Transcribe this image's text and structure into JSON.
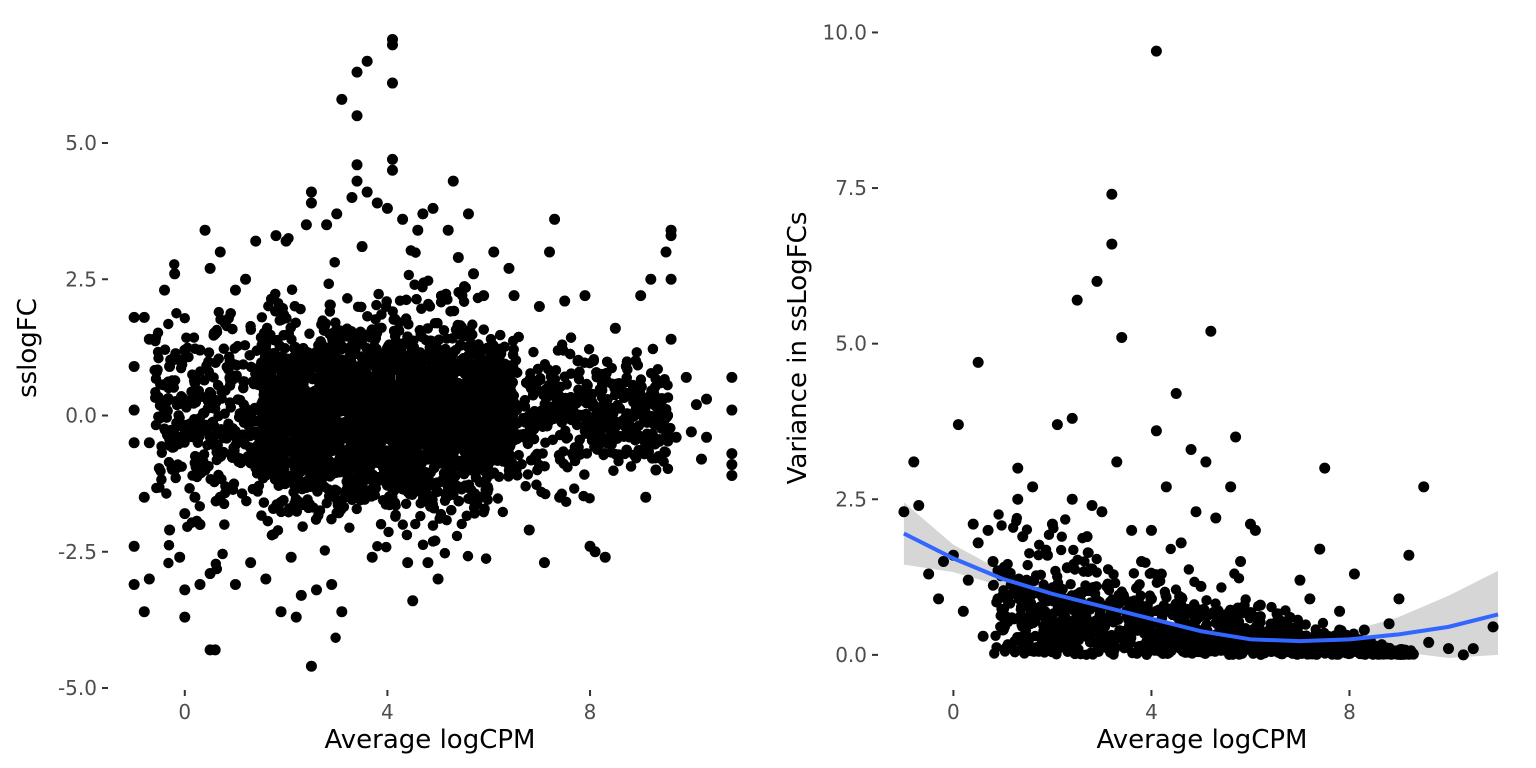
{
  "chart_data": [
    {
      "type": "scatter",
      "title": "",
      "xlabel": "Average logCPM",
      "ylabel": "sslogFC",
      "xlim": [
        -1.2,
        11.0
      ],
      "ylim": [
        -5.0,
        7.0
      ],
      "xticks": [
        0,
        4,
        8
      ],
      "xtick_labels": [
        "0",
        "4",
        "8"
      ],
      "yticks": [
        -5,
        -2.5,
        0,
        2.5,
        5
      ],
      "ytick_labels": [
        "-5.0",
        "-2.5",
        "0.0",
        "2.5",
        "5.0"
      ],
      "grid": false,
      "legend": "none",
      "point_color": "#000000",
      "points": [
        [
          -1.0,
          1.8
        ],
        [
          -1.0,
          0.9
        ],
        [
          -1.0,
          0.1
        ],
        [
          -1.0,
          -0.5
        ],
        [
          -1.0,
          -2.4
        ],
        [
          -1.0,
          -3.1
        ],
        [
          -0.8,
          1.8
        ],
        [
          -0.8,
          -1.5
        ],
        [
          -0.8,
          -3.6
        ],
        [
          -0.7,
          1.4
        ],
        [
          -0.7,
          -0.5
        ],
        [
          -0.7,
          -3.0
        ],
        [
          -0.4,
          2.3
        ],
        [
          -0.3,
          0.9
        ],
        [
          -0.3,
          -2.1
        ],
        [
          -0.2,
          2.6
        ],
        [
          -0.2,
          -1.0
        ],
        [
          -0.1,
          -2.6
        ],
        [
          0.0,
          1.2
        ],
        [
          0.0,
          -1.8
        ],
        [
          0.0,
          -3.2
        ],
        [
          0.0,
          -3.7
        ],
        [
          0.2,
          0.6
        ],
        [
          0.2,
          -1.5
        ],
        [
          0.3,
          1.2
        ],
        [
          0.3,
          -2.0
        ],
        [
          0.3,
          -3.1
        ],
        [
          0.4,
          3.4
        ],
        [
          0.4,
          -1.0
        ],
        [
          0.5,
          -4.3
        ],
        [
          0.5,
          2.7
        ],
        [
          0.5,
          -2.9
        ],
        [
          0.6,
          -4.3
        ],
        [
          0.6,
          1.5
        ],
        [
          0.7,
          3.0
        ],
        [
          0.7,
          -1.5
        ],
        [
          1.0,
          2.3
        ],
        [
          1.0,
          -3.1
        ],
        [
          1.2,
          2.5
        ],
        [
          1.3,
          -2.7
        ],
        [
          1.4,
          3.2
        ],
        [
          1.6,
          -3.0
        ],
        [
          1.8,
          3.3
        ],
        [
          1.9,
          -3.6
        ],
        [
          2.0,
          3.2
        ],
        [
          2.1,
          -2.6
        ],
        [
          2.2,
          -3.7
        ],
        [
          2.3,
          -3.3
        ],
        [
          2.4,
          3.5
        ],
        [
          2.5,
          4.1
        ],
        [
          2.5,
          3.9
        ],
        [
          2.5,
          -4.6
        ],
        [
          2.6,
          -3.2
        ],
        [
          2.8,
          3.5
        ],
        [
          2.9,
          -3.1
        ],
        [
          3.0,
          3.7
        ],
        [
          3.1,
          5.8
        ],
        [
          3.1,
          -3.6
        ],
        [
          3.3,
          4.0
        ],
        [
          3.4,
          6.3
        ],
        [
          3.4,
          5.5
        ],
        [
          3.4,
          4.6
        ],
        [
          3.4,
          4.3
        ],
        [
          3.5,
          3.1
        ],
        [
          3.6,
          6.5
        ],
        [
          3.6,
          4.1
        ],
        [
          3.7,
          -2.6
        ],
        [
          3.8,
          3.9
        ],
        [
          4.0,
          3.8
        ],
        [
          4.1,
          6.9
        ],
        [
          4.1,
          6.8
        ],
        [
          4.1,
          6.1
        ],
        [
          4.1,
          4.7
        ],
        [
          4.1,
          4.5
        ],
        [
          4.3,
          3.6
        ],
        [
          4.4,
          -2.7
        ],
        [
          4.5,
          -3.4
        ],
        [
          4.6,
          3.4
        ],
        [
          4.7,
          3.7
        ],
        [
          4.8,
          -2.7
        ],
        [
          4.9,
          3.8
        ],
        [
          5.0,
          -3.0
        ],
        [
          5.2,
          3.4
        ],
        [
          5.3,
          4.3
        ],
        [
          5.4,
          2.9
        ],
        [
          5.6,
          3.7
        ],
        [
          5.7,
          2.6
        ],
        [
          5.9,
          2.2
        ],
        [
          6.1,
          3.0
        ],
        [
          6.4,
          2.7
        ],
        [
          6.5,
          2.2
        ],
        [
          6.8,
          -2.1
        ],
        [
          7.0,
          2.0
        ],
        [
          7.1,
          -2.7
        ],
        [
          7.2,
          3.0
        ],
        [
          7.3,
          3.6
        ],
        [
          7.4,
          -1.5
        ],
        [
          7.5,
          2.1
        ],
        [
          7.9,
          2.2
        ],
        [
          8.0,
          -2.4
        ],
        [
          8.1,
          -2.5
        ],
        [
          8.3,
          -2.6
        ],
        [
          8.5,
          1.6
        ],
        [
          8.9,
          1.0
        ],
        [
          9.0,
          2.2
        ],
        [
          9.1,
          -1.5
        ],
        [
          9.2,
          2.5
        ],
        [
          9.3,
          -1.0
        ],
        [
          9.5,
          3.0
        ],
        [
          9.6,
          3.3
        ],
        [
          9.6,
          3.4
        ],
        [
          9.6,
          2.5
        ],
        [
          9.6,
          1.4
        ],
        [
          9.7,
          -0.4
        ],
        [
          9.9,
          0.7
        ],
        [
          10.0,
          -0.3
        ],
        [
          10.1,
          0.2
        ],
        [
          10.2,
          -0.8
        ],
        [
          10.3,
          0.3
        ],
        [
          10.3,
          -0.4
        ],
        [
          10.8,
          0.7
        ],
        [
          10.8,
          0.1
        ],
        [
          10.8,
          -0.7
        ],
        [
          10.8,
          -0.9
        ],
        [
          10.8,
          -1.1
        ]
      ],
      "cloud": {
        "note": "dense cloud of several thousand overlapping points centred on 0"
      }
    },
    {
      "type": "scatter",
      "title": "",
      "xlabel": "Average logCPM",
      "ylabel": "Variance in ssLogFCs",
      "xlim": [
        -1.2,
        11.0
      ],
      "ylim": [
        -0.5,
        10.2
      ],
      "xticks": [
        0,
        4,
        8
      ],
      "xtick_labels": [
        "0",
        "4",
        "8"
      ],
      "yticks": [
        0,
        2.5,
        5,
        7.5,
        10
      ],
      "ytick_labels": [
        "0.0",
        "2.5",
        "5.0",
        "7.5",
        "10.0"
      ],
      "grid": false,
      "legend": "none",
      "point_color": "#000000",
      "smooth_color": "#3366FF",
      "ribbon_color": "#d6d6d6",
      "points": [
        [
          -1.0,
          2.3
        ],
        [
          -0.8,
          3.1
        ],
        [
          -0.7,
          2.4
        ],
        [
          -0.5,
          1.3
        ],
        [
          -0.3,
          0.9
        ],
        [
          -0.2,
          1.5
        ],
        [
          0.0,
          1.6
        ],
        [
          0.1,
          3.7
        ],
        [
          0.2,
          0.7
        ],
        [
          0.3,
          1.2
        ],
        [
          0.4,
          2.1
        ],
        [
          0.5,
          4.7
        ],
        [
          0.5,
          1.8
        ],
        [
          0.6,
          0.3
        ],
        [
          0.7,
          2.0
        ],
        [
          0.8,
          1.5
        ],
        [
          0.9,
          0.9
        ],
        [
          1.0,
          0.4
        ],
        [
          1.1,
          1.3
        ],
        [
          1.3,
          3.0
        ],
        [
          1.3,
          2.5
        ],
        [
          1.4,
          1.9
        ],
        [
          1.5,
          0.6
        ],
        [
          1.6,
          2.7
        ],
        [
          1.7,
          1.0
        ],
        [
          1.8,
          0.3
        ],
        [
          1.9,
          1.6
        ],
        [
          2.0,
          2.1
        ],
        [
          2.1,
          3.7
        ],
        [
          2.2,
          0.8
        ],
        [
          2.3,
          1.4
        ],
        [
          2.4,
          2.5
        ],
        [
          2.4,
          3.8
        ],
        [
          2.5,
          5.7
        ],
        [
          2.6,
          0.5
        ],
        [
          2.7,
          1.9
        ],
        [
          2.8,
          2.4
        ],
        [
          2.9,
          6.0
        ],
        [
          3.0,
          2.3
        ],
        [
          3.1,
          1.1
        ],
        [
          3.2,
          7.4
        ],
        [
          3.2,
          6.6
        ],
        [
          3.3,
          3.1
        ],
        [
          3.4,
          5.1
        ],
        [
          3.5,
          0.7
        ],
        [
          3.6,
          2.0
        ],
        [
          3.8,
          1.5
        ],
        [
          3.9,
          0.2
        ],
        [
          4.0,
          2.0
        ],
        [
          4.0,
          0.9
        ],
        [
          4.1,
          9.7
        ],
        [
          4.1,
          3.6
        ],
        [
          4.2,
          1.3
        ],
        [
          4.3,
          2.7
        ],
        [
          4.5,
          4.2
        ],
        [
          4.6,
          1.8
        ],
        [
          4.7,
          0.5
        ],
        [
          4.8,
          3.3
        ],
        [
          4.9,
          2.3
        ],
        [
          5.0,
          1.1
        ],
        [
          5.1,
          3.1
        ],
        [
          5.2,
          5.2
        ],
        [
          5.3,
          2.2
        ],
        [
          5.4,
          0.6
        ],
        [
          5.6,
          2.7
        ],
        [
          5.7,
          3.5
        ],
        [
          5.8,
          1.5
        ],
        [
          5.9,
          0.2
        ],
        [
          6.0,
          2.1
        ],
        [
          6.1,
          2.0
        ],
        [
          6.2,
          0.8
        ],
        [
          6.4,
          0.4
        ],
        [
          6.6,
          0.1
        ],
        [
          6.8,
          0.6
        ],
        [
          7.0,
          1.2
        ],
        [
          7.2,
          0.9
        ],
        [
          7.3,
          0.3
        ],
        [
          7.4,
          1.7
        ],
        [
          7.5,
          3.0
        ],
        [
          7.8,
          0.7
        ],
        [
          8.0,
          0.2
        ],
        [
          8.1,
          1.3
        ],
        [
          8.3,
          0.4
        ],
        [
          8.5,
          0.1
        ],
        [
          8.8,
          0.5
        ],
        [
          9.0,
          0.9
        ],
        [
          9.2,
          1.6
        ],
        [
          9.5,
          2.7
        ],
        [
          9.6,
          0.2
        ],
        [
          10.0,
          0.1
        ],
        [
          10.3,
          0.0
        ],
        [
          10.5,
          0.1
        ],
        [
          10.9,
          0.45
        ]
      ],
      "smooth": {
        "x": [
          -1.0,
          0.0,
          1.0,
          2.0,
          3.0,
          4.0,
          5.0,
          6.0,
          7.0,
          8.0,
          9.0,
          10.0,
          11.0
        ],
        "y": [
          1.95,
          1.55,
          1.22,
          0.98,
          0.78,
          0.58,
          0.38,
          0.25,
          0.22,
          0.25,
          0.33,
          0.45,
          0.65
        ],
        "ymin": [
          1.45,
          1.33,
          1.1,
          0.9,
          0.72,
          0.53,
          0.33,
          0.18,
          0.14,
          0.12,
          0.05,
          -0.05,
          0.0
        ],
        "ymax": [
          2.45,
          1.77,
          1.34,
          1.06,
          0.84,
          0.63,
          0.43,
          0.32,
          0.3,
          0.38,
          0.61,
          0.95,
          1.35
        ]
      }
    }
  ]
}
